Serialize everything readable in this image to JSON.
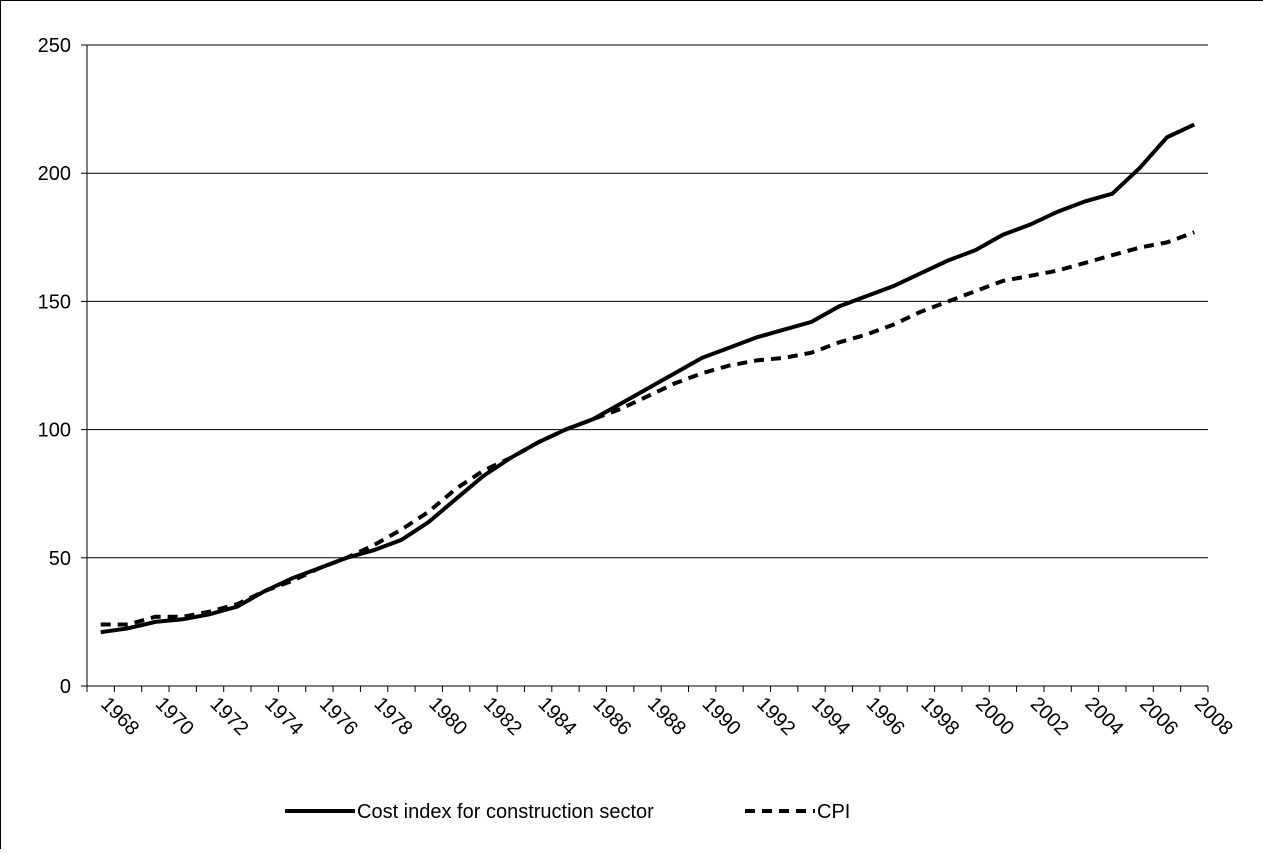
{
  "chart_data": {
    "type": "line",
    "categories": [
      "1968",
      null,
      "1970",
      null,
      "1972",
      null,
      "1974",
      null,
      "1976",
      null,
      "1978",
      null,
      "1980",
      null,
      "1982",
      null,
      "1984",
      null,
      "1986",
      null,
      "1988",
      null,
      "1990",
      null,
      "1992",
      null,
      "1994",
      null,
      "1996",
      null,
      "1998",
      null,
      "2000",
      null,
      "2002",
      null,
      "2004",
      null,
      "2006",
      null,
      "2008"
    ],
    "series": [
      {
        "name": "Cost index for construction sector",
        "color": "#000000",
        "dash": "solid",
        "values": [
          21,
          22.5,
          25,
          26,
          28,
          31,
          37,
          42,
          46,
          50,
          53,
          57,
          64,
          73,
          82,
          89,
          95,
          100,
          104,
          110,
          116,
          122,
          128,
          132,
          136,
          139,
          142,
          148,
          152,
          156,
          161,
          166,
          170,
          176,
          180,
          185,
          189,
          192,
          202,
          214,
          219
        ]
      },
      {
        "name": "CPI",
        "color": "#000000",
        "dash": "dashed",
        "values": [
          24,
          24,
          27,
          27,
          29,
          32,
          37,
          41,
          46,
          50,
          55,
          61,
          68,
          77,
          84,
          89,
          95,
          100,
          104,
          108,
          113,
          118,
          122,
          125,
          127,
          128,
          130,
          134,
          137,
          141,
          146,
          150,
          154,
          158,
          160,
          162,
          165,
          168,
          171,
          173,
          177
        ]
      }
    ],
    "ylim": [
      0,
      250
    ],
    "yticks": [
      0,
      50,
      100,
      150,
      200,
      250
    ],
    "grid": true,
    "legend": "bottom"
  }
}
